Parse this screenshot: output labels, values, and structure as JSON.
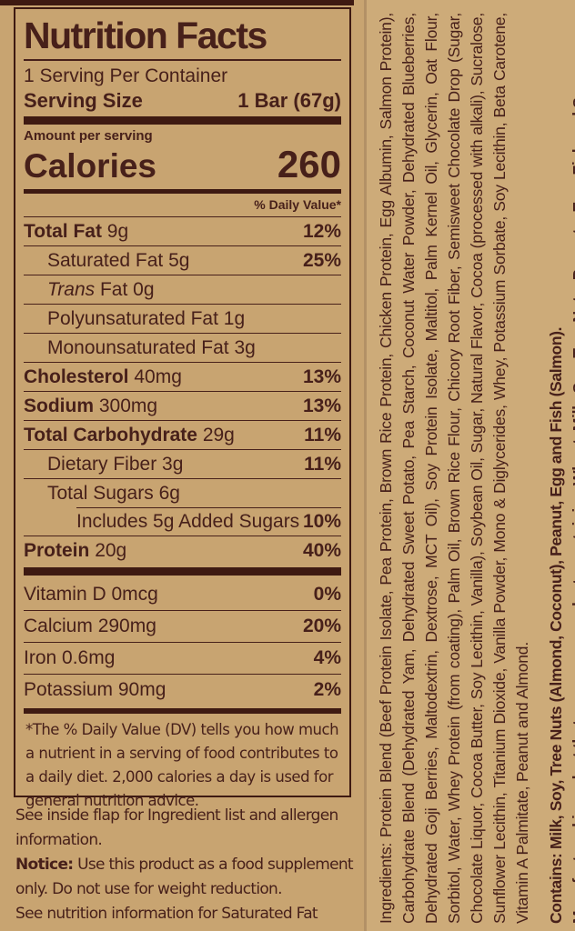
{
  "colors": {
    "background": "#c8a471",
    "background_right": "#cdab79",
    "ink": "#47201a",
    "bar": "#3e1a12"
  },
  "panel": {
    "title": "Nutrition Facts",
    "servings_per_container": "1 Serving Per Container",
    "serving_size_label": "Serving Size",
    "serving_size_value": "1 Bar (67g)",
    "amount_per_serving": "Amount per serving",
    "calories_label": "Calories",
    "calories_value": "260",
    "daily_value_header": "% Daily Value*",
    "nutrient_rows": [
      {
        "label": "Total Fat",
        "amount": "9g",
        "dv": "12%",
        "bold": true,
        "indent": 0
      },
      {
        "label": "Saturated Fat",
        "amount": "5g",
        "dv": "25%",
        "indent": 1
      },
      {
        "label_italic": "Trans",
        "label": " Fat",
        "amount": "0g",
        "dv": "",
        "indent": 1
      },
      {
        "label": "Polyunsaturated Fat",
        "amount": "1g",
        "dv": "",
        "indent": 1
      },
      {
        "label": "Monounsaturated Fat",
        "amount": "3g",
        "dv": "",
        "indent": 1
      },
      {
        "label": "Cholesterol",
        "amount": "40mg",
        "dv": "13%",
        "bold": true,
        "indent": 0
      },
      {
        "label": "Sodium",
        "amount": "300mg",
        "dv": "13%",
        "bold": true,
        "indent": 0
      },
      {
        "label": "Total Carbohydrate",
        "amount": "29g",
        "dv": "11%",
        "bold": true,
        "indent": 0
      },
      {
        "label": "Dietary Fiber",
        "amount": "3g",
        "dv": "11%",
        "indent": 1
      },
      {
        "label": "Total Sugars",
        "amount": "6g",
        "dv": "",
        "indent": 1
      },
      {
        "label": "Includes 5g Added Sugars",
        "amount": "",
        "dv": "10%",
        "indent": 2,
        "sep": "indent"
      },
      {
        "label": "Protein",
        "amount": "20g",
        "dv": "40%",
        "bold": true,
        "indent": 0
      }
    ],
    "vitamin_rows": [
      {
        "label": "Vitamin D",
        "amount": "0mcg",
        "dv": "0%"
      },
      {
        "label": "Calcium",
        "amount": "290mg",
        "dv": "20%"
      },
      {
        "label": "Iron",
        "amount": "0.6mg",
        "dv": "4%"
      },
      {
        "label": "Potassium",
        "amount": "90mg",
        "dv": "2%"
      }
    ],
    "footnote": "*The % Daily Value (DV) tells you how much a nutrient in a serving of food contributes to a daily diet. 2,000 calories a day is used for general nutrition advice."
  },
  "notes": {
    "p1": "See inside flap for Ingredient list and allergen information.",
    "notice_label": "Notice:",
    "notice_text": " Use this product as a food supplement only. Do not use for weight reduction.",
    "p3": "See nutrition information for Saturated Fat content."
  },
  "ingredients": {
    "ingredients": "Ingredients: Protein Blend (Beef Protein Isolate, Pea Protein, Brown Rice Protein, Chicken Protein, Egg Albumin, Salmon Protein), Carbohydrate Blend (Dehydrated Yam, Dehydrated Sweet Potato, Pea Starch, Coconut Water Powder, Dehydrated Blueberries, Dehydrated Goji Berries, Maltodextrin, Dextrose, MCT Oil), Soy Protein Isolate, Maltitol, Palm Kernel Oil, Glycerin, Oat Flour, Sorbitol, Water, Whey Protein (from coating), Palm Oil, Brown Rice Flour, Chicory Root Fiber, Semisweet Chocolate Drop (Sugar, Chocolate Liquor, Cocoa Butter, Soy Lecithin, Vanilla), Soybean Oil, Sugar, Natural Flavor, Cocoa (processed with alkali), Sucralose, Sunflower Lecithin, Titanium Dioxide, Vanilla Powder, Mono & Diglycerides, Whey, Potassium Sorbate, Soy Lecithin, Beta Carotene, Vitamin A Palmitate, Peanut and Almond.",
    "contains": "Contains: Milk, Soy, Tree Nuts (Almond, Coconut), Peanut, Egg and Fish (Salmon).",
    "manufactured": "Manufactured in a plant that processes products containing Wheat, Milk, Soy, Tree Nuts, Peanuts, Egg, Fish and Sesame."
  }
}
